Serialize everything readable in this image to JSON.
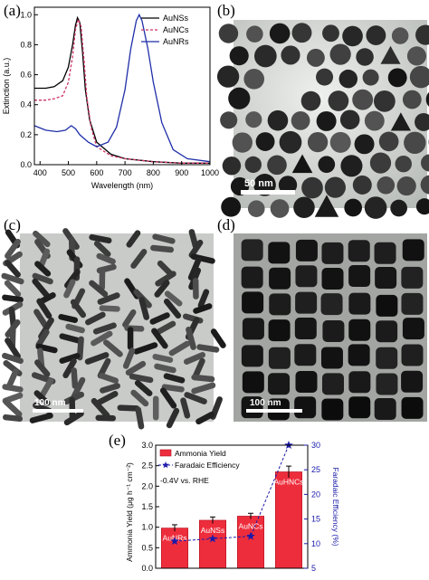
{
  "panels": {
    "a": "(a)",
    "b": "(b)",
    "c": "(c)",
    "d": "(d)",
    "e": "(e)"
  },
  "scale_bars": {
    "b": "50 nm",
    "c": "100 nm",
    "d": "100 nm"
  },
  "colors": {
    "aunss": "#000000",
    "auncs": "#cc3366",
    "aunrs": "#1f2fa8",
    "bar_fill": "#ee2d3c",
    "fe_line": "#1a1aaa",
    "axis_right": "#1a1aaa"
  },
  "chart_data": [
    {
      "type": "line",
      "xlabel": "Wavelength (nm)",
      "ylabel": "Extinction (a.u.)",
      "xlim": [
        380,
        1000
      ],
      "ylim": [
        0,
        1.05
      ],
      "xticks": [
        400,
        500,
        600,
        700,
        800,
        900,
        1000
      ],
      "yticks": [
        0.0,
        0.2,
        0.4,
        0.6,
        0.8,
        1.0
      ],
      "legend_position": "top-right",
      "series": [
        {
          "name": "AuNSs",
          "style": "solid",
          "x": [
            380,
            420,
            450,
            480,
            500,
            515,
            525,
            532,
            540,
            550,
            560,
            575,
            600,
            650,
            700,
            800,
            900,
            1000
          ],
          "y": [
            0.51,
            0.51,
            0.52,
            0.56,
            0.65,
            0.8,
            0.93,
            0.98,
            0.95,
            0.75,
            0.5,
            0.3,
            0.15,
            0.07,
            0.04,
            0.02,
            0.01,
            0.01
          ]
        },
        {
          "name": "AuNCs",
          "style": "dashed",
          "x": [
            380,
            420,
            450,
            480,
            500,
            515,
            525,
            535,
            545,
            555,
            565,
            580,
            600,
            650,
            700,
            800,
            900,
            1000
          ],
          "y": [
            0.43,
            0.43,
            0.44,
            0.46,
            0.55,
            0.72,
            0.9,
            0.97,
            0.92,
            0.7,
            0.45,
            0.25,
            0.12,
            0.06,
            0.04,
            0.02,
            0.01,
            0.01
          ]
        },
        {
          "name": "AuNRs",
          "style": "solid",
          "x": [
            380,
            420,
            460,
            490,
            510,
            525,
            540,
            570,
            600,
            640,
            670,
            700,
            720,
            740,
            750,
            760,
            780,
            800,
            830,
            870,
            920,
            1000
          ],
          "y": [
            0.26,
            0.23,
            0.22,
            0.23,
            0.26,
            0.24,
            0.2,
            0.15,
            0.12,
            0.15,
            0.25,
            0.5,
            0.77,
            0.96,
            1.0,
            0.96,
            0.78,
            0.55,
            0.28,
            0.1,
            0.04,
            0.02
          ]
        }
      ]
    },
    {
      "type": "bar",
      "categories": [
        "AuNRs",
        "AuNSs",
        "AuNCs",
        "AuHNCs"
      ],
      "ylabel": "Ammonia Yield (μg h⁻¹ cm⁻²)",
      "y2label": "Faradaic Efficiency (%)",
      "ylim": [
        0,
        3.0
      ],
      "y2lim": [
        5,
        30
      ],
      "yticks": [
        0.0,
        0.5,
        1.0,
        1.5,
        2.0,
        2.5,
        3.0
      ],
      "y2ticks": [
        5,
        10,
        15,
        20,
        25,
        30
      ],
      "annotation": "-0.4V vs. RHE",
      "legend_position": "top-left",
      "series": [
        {
          "name": "Ammonia Yield",
          "axis": "left",
          "values": [
            0.98,
            1.17,
            1.27,
            2.35
          ],
          "errors": [
            0.08,
            0.08,
            0.07,
            0.14
          ]
        },
        {
          "name": "Faradaic Efficiency",
          "axis": "right",
          "values": [
            10.5,
            11.0,
            11.5,
            30.0
          ]
        }
      ]
    }
  ]
}
